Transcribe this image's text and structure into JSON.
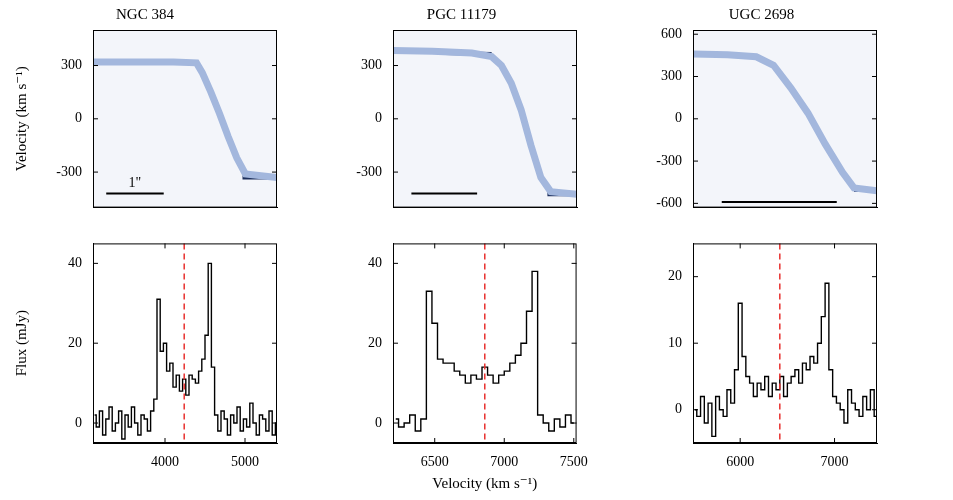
{
  "chart_data": [
    {
      "type": "line",
      "title": "NGC 384",
      "ylabel": "Velocity (km s⁻¹)",
      "tick_labels": "y",
      "grid": false,
      "xlim": [
        -1.6,
        1.6
      ],
      "ylim": [
        -500,
        500
      ],
      "yticks": [
        -300,
        0,
        300
      ],
      "series": [
        {
          "color": "#a3b7dd",
          "line_style": "band",
          "x": [
            -1.6,
            -0.8,
            -0.2,
            0.2,
            0.3,
            0.45,
            0.6,
            0.75,
            0.9,
            1.05,
            1.6
          ],
          "values": [
            320,
            320,
            320,
            315,
            260,
            150,
            30,
            -100,
            -220,
            -310,
            -330
          ]
        },
        {
          "color": "#1c2f5c",
          "line_style": "solid",
          "x": [
            -1.15,
            -0.2
          ],
          "values": [
            320,
            320
          ]
        },
        {
          "color": "#1c2f5c",
          "line_style": "solid",
          "x": [
            1.0,
            1.5
          ],
          "values": [
            -330,
            -330
          ]
        }
      ],
      "scale_bar": {
        "x": [
          -1.37,
          -0.37
        ],
        "y": -420,
        "label": "1\""
      }
    },
    {
      "type": "line",
      "title": "PGC 11179",
      "tick_labels": "y",
      "grid": false,
      "xlim": [
        -1.4,
        1.4
      ],
      "ylim": [
        -500,
        500
      ],
      "yticks": [
        -300,
        0,
        300
      ],
      "series": [
        {
          "color": "#a3b7dd",
          "line_style": "band",
          "x": [
            -1.4,
            -0.8,
            -0.2,
            0.1,
            0.25,
            0.4,
            0.55,
            0.7,
            0.85,
            1.0,
            1.4
          ],
          "values": [
            385,
            380,
            370,
            350,
            300,
            200,
            50,
            -150,
            -330,
            -410,
            -425
          ]
        },
        {
          "color": "#1c2f5c",
          "line_style": "solid",
          "x": [
            -0.6,
            0.1
          ],
          "values": [
            370,
            365
          ]
        },
        {
          "color": "#1c2f5c",
          "line_style": "solid",
          "x": [
            0.95,
            1.3
          ],
          "values": [
            -425,
            -425
          ]
        }
      ],
      "scale_bar": {
        "x": [
          -1.12,
          -0.12
        ],
        "y": -420
      }
    },
    {
      "type": "line",
      "title": "UGC 2698",
      "tick_labels": "y",
      "grid": false,
      "xlim": [
        -0.8,
        0.8
      ],
      "ylim": [
        -630,
        630
      ],
      "yticks": [
        -600,
        -300,
        0,
        300,
        600
      ],
      "series": [
        {
          "color": "#a3b7dd",
          "line_style": "band",
          "x": [
            -0.8,
            -0.5,
            -0.25,
            -0.1,
            0.05,
            0.2,
            0.35,
            0.5,
            0.6,
            0.8
          ],
          "values": [
            460,
            455,
            440,
            380,
            220,
            40,
            -180,
            -380,
            -490,
            -510
          ]
        },
        {
          "color": "#1c2f5c",
          "line_style": "solid",
          "x": [
            -0.55,
            -0.3
          ],
          "values": [
            455,
            450
          ]
        },
        {
          "color": "#1c2f5c",
          "line_style": "solid",
          "x": [
            0.6,
            0.75
          ],
          "values": [
            -505,
            -505
          ]
        }
      ],
      "scale_bar": {
        "x": [
          -0.55,
          0.45
        ],
        "y": -590
      }
    },
    {
      "type": "line",
      "ylabel": "Flux (mJy)",
      "grid": false,
      "xlim": [
        3100,
        5400
      ],
      "ylim": [
        -5,
        45
      ],
      "xticks": [
        4000,
        5000
      ],
      "yticks": [
        0,
        20,
        40
      ],
      "series": [
        {
          "color": "#000000",
          "line_style": "steps",
          "x": [
            3120,
            3160,
            3200,
            3240,
            3280,
            3320,
            3360,
            3400,
            3440,
            3480,
            3520,
            3560,
            3600,
            3640,
            3680,
            3720,
            3760,
            3800,
            3840,
            3880,
            3920,
            3960,
            4000,
            4040,
            4080,
            4120,
            4160,
            4200,
            4240,
            4280,
            4320,
            4360,
            4400,
            4440,
            4480,
            4520,
            4560,
            4600,
            4640,
            4680,
            4720,
            4760,
            4800,
            4840,
            4880,
            4920,
            4960,
            5000,
            5040,
            5080,
            5120,
            5160,
            5200,
            5240,
            5280,
            5320,
            5360,
            5400
          ],
          "values": [
            2,
            -1,
            3,
            -3,
            1,
            4,
            -2,
            0,
            3,
            -4,
            2,
            -1,
            4,
            0,
            -3,
            2,
            1,
            -2,
            3,
            6,
            31,
            18,
            20,
            13,
            15,
            9,
            12,
            8,
            11,
            7,
            12,
            11,
            10,
            13,
            16,
            22,
            40,
            14,
            2,
            -2,
            3,
            1,
            -3,
            2,
            0,
            4,
            -2,
            1,
            -1,
            5,
            0,
            -3,
            2,
            1,
            -2,
            3,
            -3,
            0
          ]
        }
      ],
      "reference_x": {
        "value": 4240,
        "color": "#e8312f",
        "line_style": "dashed"
      }
    },
    {
      "type": "line",
      "xlabel": "Velocity (km s⁻¹)",
      "grid": false,
      "xlim": [
        6200,
        7520
      ],
      "ylim": [
        -5,
        45
      ],
      "xticks": [
        6500,
        7000,
        7500
      ],
      "yticks": [
        0,
        20,
        40
      ],
      "series": [
        {
          "color": "#000000",
          "line_style": "steps",
          "x": [
            6220,
            6260,
            6300,
            6340,
            6380,
            6420,
            6460,
            6500,
            6540,
            6580,
            6620,
            6660,
            6700,
            6740,
            6780,
            6820,
            6860,
            6900,
            6940,
            6980,
            7020,
            7060,
            7100,
            7140,
            7180,
            7220,
            7260,
            7300,
            7340,
            7380,
            7420,
            7460,
            7500
          ],
          "values": [
            1,
            -1,
            0,
            2,
            -2,
            1,
            33,
            25,
            16,
            15,
            15,
            13,
            12,
            10,
            12,
            11,
            14,
            12,
            10,
            12,
            13,
            15,
            17,
            20,
            28,
            38,
            2,
            0,
            -2,
            1,
            -1,
            2,
            0
          ]
        }
      ],
      "reference_x": {
        "value": 6860,
        "color": "#e8312f",
        "line_style": "dashed"
      }
    },
    {
      "type": "line",
      "grid": false,
      "xlim": [
        5500,
        7450
      ],
      "ylim": [
        -5,
        25
      ],
      "xticks": [
        6000,
        7000
      ],
      "yticks": [
        0,
        10,
        20
      ],
      "series": [
        {
          "color": "#000000",
          "line_style": "steps",
          "x": [
            5520,
            5560,
            5600,
            5640,
            5680,
            5720,
            5760,
            5800,
            5840,
            5880,
            5920,
            5960,
            6000,
            6040,
            6080,
            6120,
            6160,
            6200,
            6240,
            6280,
            6320,
            6360,
            6400,
            6440,
            6480,
            6520,
            6560,
            6600,
            6640,
            6680,
            6720,
            6760,
            6800,
            6840,
            6880,
            6920,
            6960,
            7000,
            7040,
            7080,
            7120,
            7160,
            7200,
            7240,
            7280,
            7320,
            7360,
            7400,
            7440
          ],
          "values": [
            0,
            -1,
            2,
            -2,
            1,
            -4,
            2,
            0,
            -1,
            3,
            1,
            6,
            16,
            8,
            5,
            4,
            2,
            4,
            3,
            5,
            2,
            4,
            3,
            5,
            2,
            4,
            5,
            6,
            4,
            7,
            6,
            8,
            7,
            10,
            14,
            19,
            6,
            2,
            1,
            0,
            -2,
            3,
            1,
            0,
            -1,
            2,
            0,
            3,
            -1
          ]
        }
      ],
      "reference_x": {
        "value": 6420,
        "color": "#e8312f",
        "line_style": "dashed"
      }
    }
  ]
}
